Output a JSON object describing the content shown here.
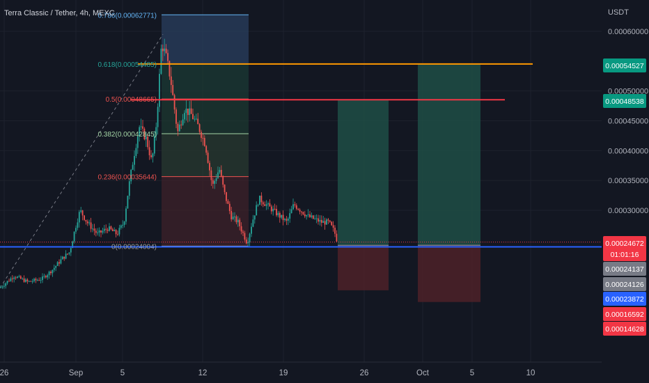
{
  "colors": {
    "background": "#131722",
    "grid": "#1e222d",
    "up": "#26a69a",
    "down": "#ef5350",
    "fib_0786": "#64b5f6",
    "fib_0618": "#26a69a",
    "fib_05": "#ef5350",
    "fib_0382": "#a5d6a7",
    "fib_0236": "#ef5350",
    "fib_0": "#9e9e9e",
    "orange_line": "#ff9800",
    "red_line": "#f23645",
    "blue_line": "#2962ff",
    "axis_text": "#b2b5be"
  },
  "header": {
    "symbol_line": "Terra Classic / Tether, 4h, MEXC"
  },
  "chart_data": {
    "type": "candlestick",
    "title": "Terra Classic / Tether, 4h, MEXC",
    "y_unit": "USDT",
    "ylim": [
      0.000106,
      0.000651
    ],
    "x_tick_labels": [
      "26",
      "Sep",
      "5",
      "12",
      "19",
      "26",
      "Oct",
      "5",
      "10"
    ],
    "y_tick_labels": [
      "0.00060000",
      "0.00050000",
      "0.00045000",
      "0.00040000",
      "0.00035000",
      "0.00030000"
    ],
    "y_tick_values": [
      0.0006,
      0.0005,
      0.00045,
      0.0004,
      0.00035,
      0.0003
    ],
    "price_path": [
      [
        0,
        0.00017
      ],
      [
        20,
        0.00019
      ],
      [
        40,
        0.00018
      ],
      [
        60,
        0.000185
      ],
      [
        75,
        0.0002
      ],
      [
        90,
        0.00022
      ],
      [
        100,
        0.00023
      ],
      [
        108,
        0.00027
      ],
      [
        115,
        0.0003
      ],
      [
        125,
        0.00028
      ],
      [
        140,
        0.00026
      ],
      [
        155,
        0.00027
      ],
      [
        168,
        0.00026
      ],
      [
        178,
        0.00028
      ],
      [
        185,
        0.00034
      ],
      [
        192,
        0.00039
      ],
      [
        200,
        0.00044
      ],
      [
        210,
        0.00042
      ],
      [
        218,
        0.00038
      ],
      [
        225,
        0.00045
      ],
      [
        232,
        0.00058
      ],
      [
        238,
        0.00056
      ],
      [
        245,
        0.00052
      ],
      [
        255,
        0.00043
      ],
      [
        265,
        0.00047
      ],
      [
        275,
        0.00046
      ],
      [
        285,
        0.00044
      ],
      [
        295,
        0.00041
      ],
      [
        305,
        0.00034
      ],
      [
        315,
        0.00037
      ],
      [
        322,
        0.00033
      ],
      [
        332,
        0.00029
      ],
      [
        342,
        0.00028
      ],
      [
        355,
        0.000245
      ],
      [
        362,
        0.00028
      ],
      [
        372,
        0.00032
      ],
      [
        382,
        0.00031
      ],
      [
        392,
        0.0003
      ],
      [
        402,
        0.00029
      ],
      [
        412,
        0.00028
      ],
      [
        422,
        0.00031
      ],
      [
        432,
        0.0003
      ],
      [
        442,
        0.00029
      ],
      [
        452,
        0.000285
      ],
      [
        462,
        0.00028
      ],
      [
        472,
        0.00028
      ],
      [
        480,
        0.000265
      ],
      [
        485,
        0.000245
      ]
    ],
    "fib_retracement": {
      "levels": [
        {
          "label": "0.786(0.00062771)",
          "value": 0.00062771,
          "color": "#64b5f6"
        },
        {
          "label": "0.618(0.00054485)",
          "value": 0.00054485,
          "color": "#26a69a"
        },
        {
          "label": "0.5(0.00048665)",
          "value": 0.00048665,
          "color": "#ef5350"
        },
        {
          "label": "0.382(0.00042845)",
          "value": 0.00042845,
          "color": "#a5d6a7"
        },
        {
          "label": "0.236(0.00035644)",
          "value": 0.00035644,
          "color": "#ef5350"
        },
        {
          "label": "0(0.00024004)",
          "value": 0.00024004,
          "color": "#9e9e9e"
        }
      ],
      "zones": [
        {
          "from": 0.00054485,
          "to": 0.00062771,
          "color": "#2a3f5f"
        },
        {
          "from": 0.00048665,
          "to": 0.00054485,
          "color": "#1b3a34"
        },
        {
          "from": 0.00042845,
          "to": 0.00048665,
          "color": "#1c3830"
        },
        {
          "from": 0.00035644,
          "to": 0.00042845,
          "color": "#283a30"
        },
        {
          "from": 0.00024004,
          "to": 0.00035644,
          "color": "#3d2229"
        }
      ]
    },
    "horizontal_lines": [
      {
        "value": 0.00054527,
        "color": "#ff9800"
      },
      {
        "value": 0.00048538,
        "color": "#f23645"
      },
      {
        "value": 0.00023872,
        "color": "#2962ff"
      }
    ],
    "positions": [
      {
        "entry": 0.00024126,
        "target": 0.00048538,
        "stop": 0.00016592
      },
      {
        "entry": 0.00024137,
        "target": 0.00054527,
        "stop": 0.00014628
      }
    ],
    "price_labels": [
      {
        "text": "0.00054527",
        "value": 0.00054527,
        "bg": "#089981"
      },
      {
        "text": "0.00048538",
        "value": 0.00048538,
        "bg": "#089981"
      },
      {
        "text": "0.00024672",
        "value": 0.00024672,
        "bg": "#f23645",
        "sub": "01:01:16"
      },
      {
        "text": "0.00024137",
        "value": 0.00024137,
        "bg": "#787b86"
      },
      {
        "text": "0.00024126",
        "value": 0.00024126,
        "bg": "#787b86"
      },
      {
        "text": "0.00023872",
        "value": 0.00023872,
        "bg": "#2962ff"
      },
      {
        "text": "0.00016592",
        "value": 0.00016592,
        "bg": "#f23645"
      },
      {
        "text": "0.00014628",
        "value": 0.00014628,
        "bg": "#f23645"
      }
    ]
  }
}
